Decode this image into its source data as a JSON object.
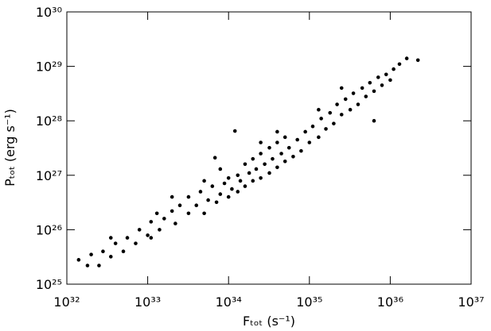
{
  "chart_data": {
    "type": "scatter",
    "xlabel": "Fₜₒₜ (s⁻¹)",
    "ylabel": "Pₜₒₜ (erg s⁻¹)",
    "log_x": true,
    "log_y": true,
    "color": "#000000",
    "xlim": [
      1e+32,
      1e+37
    ],
    "ylim": [
      1e+25,
      1e+30
    ],
    "xticks": [
      {
        "value": 1e+32,
        "label": "10³²"
      },
      {
        "value": 1e+33,
        "label": "10³³"
      },
      {
        "value": 1e+34,
        "label": "10³⁴"
      },
      {
        "value": 1e+35,
        "label": "10³⁵"
      },
      {
        "value": 1e+36,
        "label": "10³⁶"
      },
      {
        "value": 1e+37,
        "label": "10³⁷"
      }
    ],
    "yticks": [
      {
        "value": 1e+25,
        "label": "10²⁵"
      },
      {
        "value": 1e+26,
        "label": "10²⁶"
      },
      {
        "value": 1e+27,
        "label": "10²⁷"
      },
      {
        "value": 1e+28,
        "label": "10²⁸"
      },
      {
        "value": 1e+29,
        "label": "10²⁹"
      },
      {
        "value": 1e+30,
        "label": "10³⁰"
      }
    ],
    "x": [
      1.4e+32,
      1.8e+32,
      2e+32,
      2.5e+32,
      2.8e+32,
      3.5e+32,
      4e+32,
      5e+32,
      5.6e+32,
      7.1e+32,
      7.9e+32,
      1e+33,
      1.1e+33,
      1.3e+33,
      1.4e+33,
      1.6e+33,
      2e+33,
      2.2e+33,
      2.5e+33,
      3.2e+33,
      3.2e+33,
      4e+33,
      4.5e+33,
      5e+33,
      5.6e+33,
      6.3e+33,
      7.1e+33,
      7.9e+33,
      7.9e+33,
      8.9e+33,
      1e+34,
      1e+34,
      1.1e+34,
      1.3e+34,
      1.3e+34,
      1.4e+34,
      1.6e+34,
      1.6e+34,
      1.8e+34,
      2e+34,
      2e+34,
      2.2e+34,
      2.5e+34,
      2.5e+34,
      2.8e+34,
      3.2e+34,
      3.2e+34,
      3.5e+34,
      4e+34,
      4e+34,
      4.5e+34,
      5e+34,
      5e+34,
      5.6e+34,
      6.3e+34,
      7.1e+34,
      7.9e+34,
      8.9e+34,
      1e+35,
      1.1e+35,
      1.3e+35,
      1.4e+35,
      1.6e+35,
      1.8e+35,
      2e+35,
      2.2e+35,
      2.5e+35,
      2.8e+35,
      3.2e+35,
      3.5e+35,
      4e+35,
      4.5e+35,
      5e+35,
      5.6e+35,
      6.3e+35,
      6.3e+35,
      7.1e+35,
      7.9e+35,
      8.9e+35,
      1e+36,
      1.1e+36,
      1.3e+36,
      1.6e+36,
      2.2e+36,
      6.8e+33,
      1.2e+34,
      2e+33,
      5e+33,
      2.5e+34,
      4e+34,
      1.3e+35,
      2.5e+35,
      3.5e+32,
      1.1e+33
    ],
    "values": [
      2.8e+25,
      2.2e+25,
      3.5e+25,
      2.2e+25,
      4e+25,
      3.2e+25,
      5.6e+25,
      4e+25,
      7.1e+25,
      5.6e+25,
      1e+26,
      7.9e+25,
      1.4e+26,
      2e+26,
      1e+26,
      1.6e+26,
      2.2e+26,
      1.3e+26,
      2.8e+26,
      2e+26,
      4e+26,
      2.8e+26,
      5e+26,
      2e+26,
      3.5e+26,
      6.3e+26,
      3.2e+26,
      4.5e+26,
      1.3e+27,
      7.1e+26,
      4e+26,
      8.9e+26,
      5.6e+26,
      1e+27,
      5e+26,
      7.9e+26,
      1.6e+27,
      6.3e+26,
      1.1e+27,
      7.9e+26,
      2e+27,
      1.3e+27,
      8.9e+26,
      2.5e+27,
      1.6e+27,
      1.1e+27,
      3.2e+27,
      2e+27,
      1.4e+27,
      4e+27,
      2.5e+27,
      1.8e+27,
      5e+27,
      3.2e+27,
      2.2e+27,
      4.5e+27,
      2.8e+27,
      6.3e+27,
      4e+27,
      7.9e+27,
      5e+27,
      1.1e+28,
      7.1e+27,
      1.4e+28,
      8.9e+27,
      2e+28,
      1.3e+28,
      2.5e+28,
      1.6e+28,
      3.2e+28,
      2e+28,
      4e+28,
      2.8e+28,
      5e+28,
      3.5e+28,
      1e+28,
      6.3e+28,
      4.5e+28,
      7.1e+28,
      5.6e+28,
      8.9e+28,
      1.1e+29,
      1.4e+29,
      1.3e+29,
      2.1e+27,
      6.5e+27,
      4e+26,
      7.9e+26,
      4e+27,
      6.3e+27,
      1.6e+28,
      4e+28,
      7.1e+25,
      7.1e+25
    ]
  }
}
